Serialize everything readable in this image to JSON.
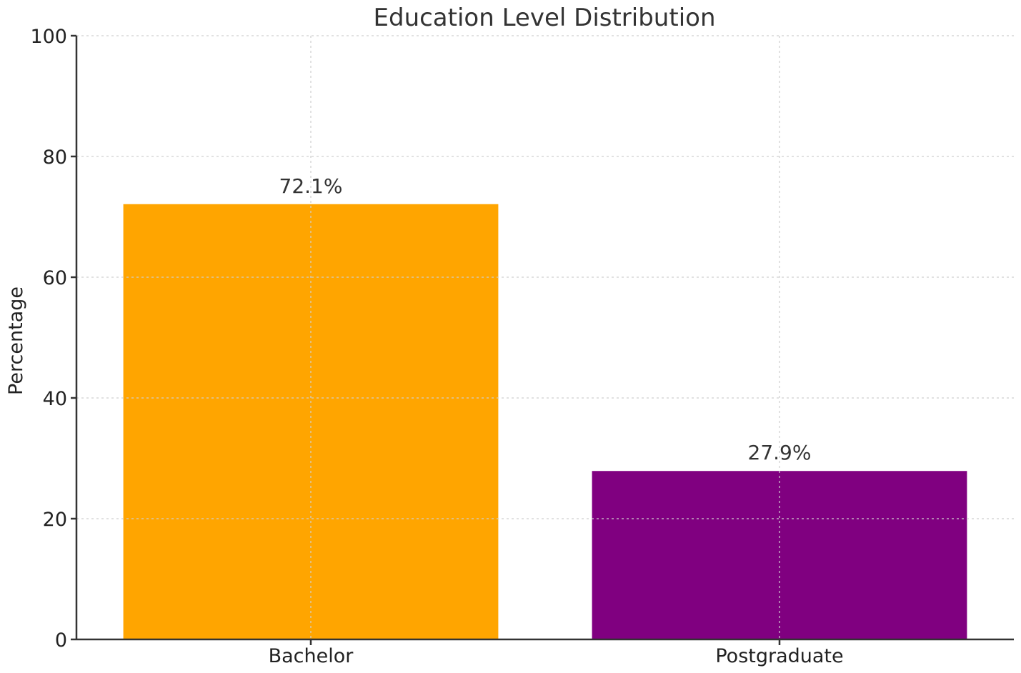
{
  "chart_data": {
    "type": "bar",
    "title": "Education Level Distribution",
    "xlabel": "",
    "ylabel": "Percentage",
    "categories": [
      "Bachelor",
      "Postgraduate"
    ],
    "values": [
      72.1,
      27.9
    ],
    "data_labels": [
      "72.1%",
      "27.9%"
    ],
    "bar_colors": [
      "#FFA500",
      "#800080"
    ],
    "ylim": [
      0,
      100
    ],
    "yticks": [
      0,
      20,
      40,
      60,
      80,
      100
    ],
    "ytick_labels": [
      "0",
      "20",
      "40",
      "60",
      "80",
      "100"
    ],
    "grid": true,
    "legend": "none"
  }
}
